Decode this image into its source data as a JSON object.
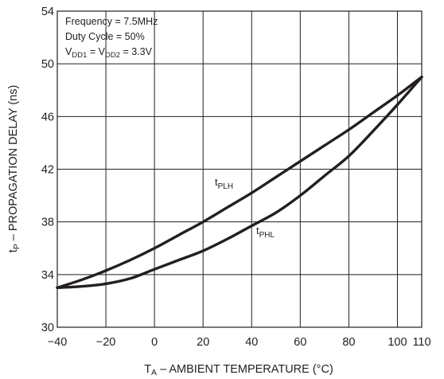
{
  "chart_data": {
    "type": "line",
    "x_ticks": [
      -40,
      -20,
      0,
      20,
      40,
      60,
      80,
      100,
      110
    ],
    "y_ticks": [
      30,
      34,
      38,
      42,
      46,
      50,
      54
    ],
    "xlim": [
      -40,
      110
    ],
    "ylim": [
      30,
      54
    ],
    "grid": true,
    "xlabel": {
      "main": "T",
      "sub": "A",
      "rest": " – AMBIENT TEMPERATURE (°C)"
    },
    "ylabel": {
      "main": "t",
      "sub": "P",
      "rest": " – PROPAGATION DELAY (ns)"
    },
    "annotations": {
      "line1": "Frequency = 7.5MHz",
      "line2": "Duty Cycle = 50%",
      "line3": {
        "a": "V",
        "a_sub": "DD1",
        "mid": " = V",
        "b_sub": "DD2",
        "end": " = 3.3V"
      }
    },
    "series": [
      {
        "name": {
          "main": "t",
          "sub": "PLH"
        },
        "x": [
          -40,
          -30,
          -20,
          -10,
          0,
          10,
          20,
          30,
          40,
          50,
          60,
          70,
          80,
          90,
          100,
          110
        ],
        "values": [
          33.0,
          33.6,
          34.3,
          35.1,
          36.0,
          37.0,
          38.0,
          39.1,
          40.2,
          41.4,
          42.6,
          43.8,
          45.0,
          46.3,
          47.6,
          49.0
        ]
      },
      {
        "name": {
          "main": "t",
          "sub": "PHL"
        },
        "x": [
          -40,
          -30,
          -20,
          -10,
          0,
          10,
          20,
          30,
          40,
          50,
          60,
          70,
          80,
          90,
          100,
          110
        ],
        "values": [
          33.0,
          33.1,
          33.3,
          33.7,
          34.4,
          35.1,
          35.8,
          36.7,
          37.7,
          38.7,
          40.0,
          41.5,
          43.0,
          44.9,
          46.9,
          49.0
        ]
      }
    ]
  }
}
